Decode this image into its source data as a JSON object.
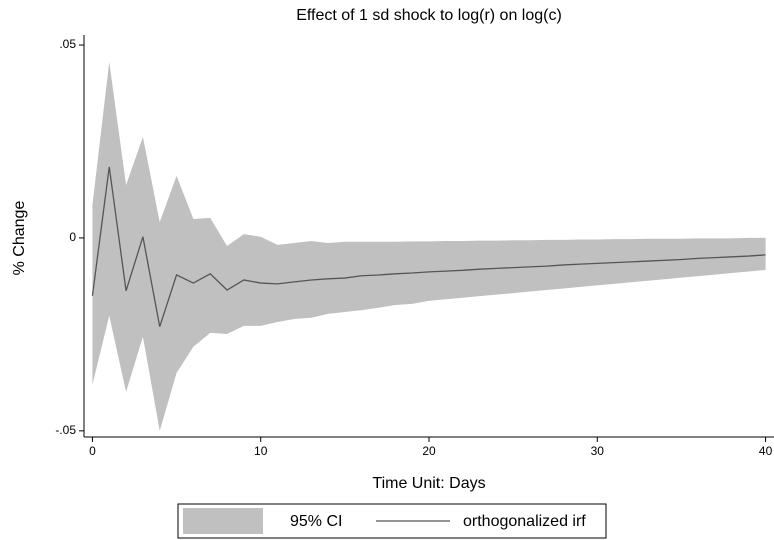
{
  "chart_data": {
    "type": "line",
    "title": "Effect of 1 sd shock to log(r) on log(c)",
    "x_label": "Time Unit: Days",
    "y_label": "% Change",
    "x": [
      0,
      1,
      2,
      3,
      4,
      5,
      6,
      7,
      8,
      9,
      10,
      11,
      12,
      13,
      14,
      15,
      16,
      17,
      18,
      19,
      20,
      21,
      22,
      23,
      24,
      25,
      26,
      27,
      28,
      29,
      30,
      31,
      32,
      33,
      34,
      35,
      36,
      37,
      38,
      39,
      40
    ],
    "xlim": [
      -0.5,
      40.5
    ],
    "xticks": [
      0,
      10,
      20,
      30,
      40
    ],
    "ylim": [
      -0.0516,
      0.0526
    ],
    "yticks": [
      {
        "value": -0.05,
        "label": "-.05"
      },
      0,
      {
        "value": 0.05,
        "label": ".05"
      }
    ],
    "series": [
      {
        "name": "95% CI",
        "type": "band",
        "color": "#c0c0c0",
        "upper": [
          0.0085,
          0.0456,
          0.0137,
          0.0262,
          0.0041,
          0.0161,
          0.0049,
          0.0052,
          -0.0021,
          0.001,
          0.0003,
          -0.0018,
          -0.0013,
          -0.0008,
          -0.0013,
          -0.001,
          -0.001,
          -0.001,
          -0.001,
          -0.0009,
          -0.0009,
          -0.0008,
          -0.0008,
          -0.0007,
          -0.0007,
          -0.0006,
          -0.0006,
          -0.0005,
          -0.0005,
          -0.0004,
          -0.0004,
          -0.0003,
          -0.0003,
          -0.0002,
          -0.0002,
          -0.0002,
          -0.0001,
          -0.0001,
          -0.0001,
          0,
          0
        ],
        "lower": [
          -0.038,
          -0.0202,
          -0.0399,
          -0.0256,
          -0.05,
          -0.035,
          -0.0282,
          -0.0246,
          -0.0249,
          -0.0228,
          -0.0228,
          -0.0218,
          -0.021,
          -0.0207,
          -0.0197,
          -0.0192,
          -0.0187,
          -0.0181,
          -0.0174,
          -0.0171,
          -0.0163,
          -0.0159,
          -0.0155,
          -0.0151,
          -0.0147,
          -0.0143,
          -0.0139,
          -0.0135,
          -0.0131,
          -0.0127,
          -0.0123,
          -0.0119,
          -0.0115,
          -0.0111,
          -0.0107,
          -0.0103,
          -0.0099,
          -0.0095,
          -0.0091,
          -0.0087,
          -0.0083
        ]
      },
      {
        "name": "orthogonalized irf",
        "type": "line",
        "color": "#555555",
        "values": [
          -0.015,
          0.0184,
          -0.0137,
          0.0003,
          -0.023,
          -0.0096,
          -0.0117,
          -0.0093,
          -0.0135,
          -0.0109,
          -0.0117,
          -0.0119,
          -0.0114,
          -0.0109,
          -0.0106,
          -0.0104,
          -0.0098,
          -0.0096,
          -0.0093,
          -0.0091,
          -0.0088,
          -0.0086,
          -0.0084,
          -0.0081,
          -0.0079,
          -0.0077,
          -0.0075,
          -0.0073,
          -0.007,
          -0.0068,
          -0.0066,
          -0.0064,
          -0.0062,
          -0.006,
          -0.0058,
          -0.0056,
          -0.0053,
          -0.0051,
          -0.0049,
          -0.0047,
          -0.0044
        ]
      }
    ]
  }
}
